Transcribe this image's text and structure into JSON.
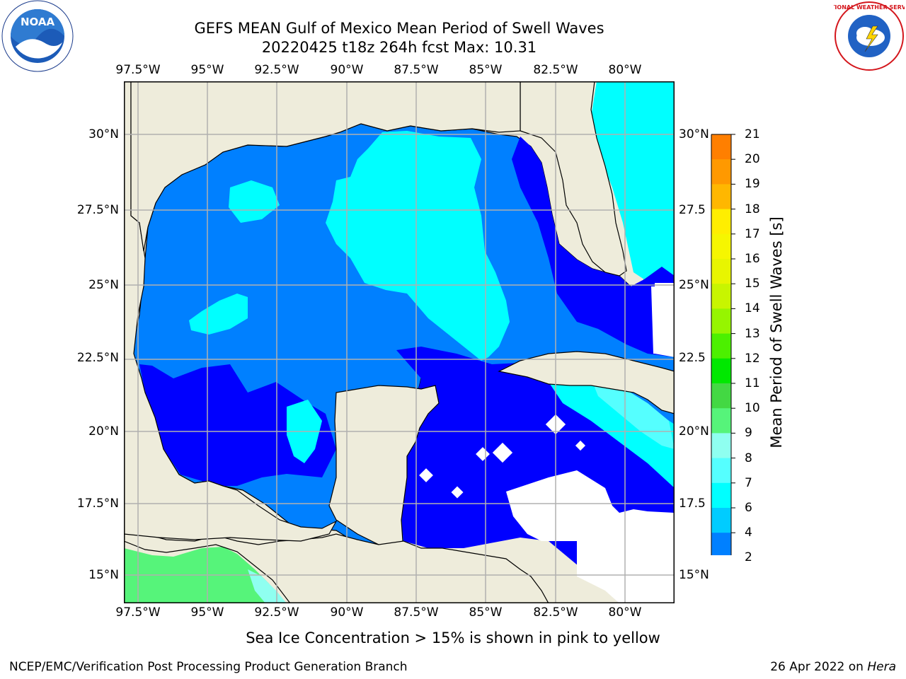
{
  "title": {
    "line1": "GEFS MEAN Gulf of Mexico Mean Period of Swell Waves",
    "line2": "20220425 t18z 264h fcst   Max: 10.31"
  },
  "map": {
    "lon_labels": [
      "97.5°W",
      "95°W",
      "92.5°W",
      "90°W",
      "87.5°W",
      "85°W",
      "82.5°W",
      "80°W"
    ],
    "lat_labels_left": [
      "30°N",
      "27.5°N",
      "25°N",
      "22.5°N",
      "20°N",
      "17.5°N",
      "15°N"
    ],
    "lat_labels_right": [
      "30°N",
      "27.5",
      "25°N",
      "22.5",
      "20°N",
      "17.5",
      "15°N"
    ],
    "land_color": "#eeecdb",
    "ocean_nodata_color": "#ffffff"
  },
  "colorbar": {
    "label": "Mean Period of Swell Waves [s]",
    "ticks": [
      "21",
      "20",
      "19",
      "18",
      "17",
      "16",
      "15",
      "14",
      "13",
      "12",
      "11",
      "10",
      "9",
      "8",
      "7",
      "6",
      "4",
      "2"
    ],
    "colors_top_to_bottom": [
      "#ff0000",
      "#ff2a00",
      "#ff5500",
      "#ff7f00",
      "#ff9900",
      "#ffb700",
      "#ffee00",
      "#f6f600",
      "#e8f500",
      "#c8f500",
      "#96f500",
      "#4cf000",
      "#00e800",
      "#43d843",
      "#56f47a",
      "#8ffff0",
      "#55ffff",
      "#00ffff",
      "#00ccff",
      "#0080ff"
    ],
    "extend_color": "#0000ff"
  },
  "seaice_note": "Sea Ice Concentration > 15% is shown in pink to yellow",
  "footer": {
    "left": "NCEP/EMC/Verification Post Processing Product Generation Branch",
    "right_date": "26 Apr 2022 on ",
    "right_host": "Hera"
  },
  "logos": {
    "left": "noaa-logo",
    "left_text": "NOAA",
    "right": "nws-logo",
    "right_text": "NATIONAL WEATHER SERVICE"
  }
}
